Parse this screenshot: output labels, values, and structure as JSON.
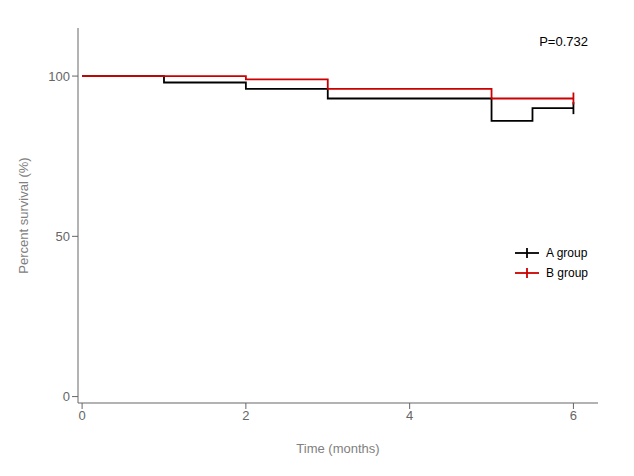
{
  "chart_data": {
    "type": "line",
    "annotation": "P=0.732",
    "xlabel": "Time (months)",
    "ylabel": "Percent survival (%)",
    "xlim": [
      -0.05,
      6.3
    ],
    "ylim": [
      -2,
      115
    ],
    "xticks": [
      0,
      2,
      4,
      6
    ],
    "yticks": [
      0,
      50,
      100
    ],
    "grid": false,
    "legend": "lower right",
    "series": [
      {
        "name": "A group",
        "color": "#000000",
        "x": [
          0,
          1.0,
          1.0,
          2.0,
          2.0,
          3.0,
          3.0,
          5.0,
          5.0,
          5.5,
          5.5,
          6.0
        ],
        "values": [
          100,
          100,
          98,
          98,
          96,
          96,
          93,
          93,
          86,
          86,
          90,
          90
        ],
        "censored": [
          6.0
        ]
      },
      {
        "name": "B group",
        "color": "#cc0000",
        "x": [
          0,
          2.0,
          2.0,
          3.0,
          3.0,
          5.0,
          5.0,
          6.0
        ],
        "values": [
          100,
          100,
          99,
          99,
          96,
          96,
          93,
          93
        ],
        "censored": [
          6.0
        ]
      }
    ]
  }
}
